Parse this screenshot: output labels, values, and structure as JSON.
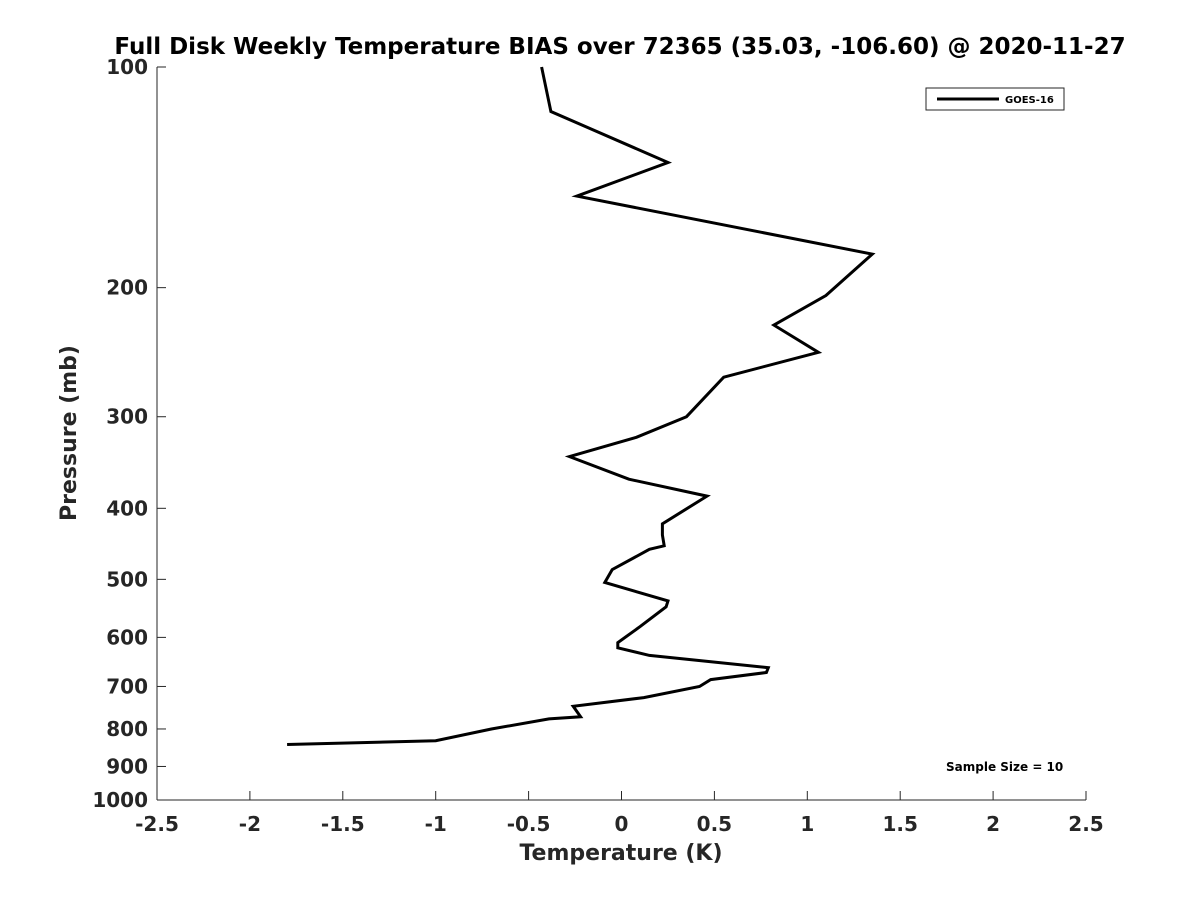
{
  "chart_data": {
    "type": "line",
    "title": "Full Disk Weekly Temperature BIAS over 72365 (35.03, -106.60) @ 2020-11-27",
    "xlabel": "Temperature (K)",
    "ylabel": "Pressure (mb)",
    "xlim": [
      -2.5,
      2.5
    ],
    "ylim": [
      100,
      1000
    ],
    "y_scale": "log",
    "y_reversed": true,
    "grid": false,
    "legend_position": "top-right",
    "x_ticks": [
      -2.5,
      -2,
      -1.5,
      -1,
      -0.5,
      0,
      0.5,
      1,
      1.5,
      2,
      2.5
    ],
    "x_tick_labels": [
      "-2.5",
      "-2",
      "-1.5",
      "-1",
      "-0.5",
      "0",
      "0.5",
      "1",
      "1.5",
      "2",
      "2.5"
    ],
    "y_ticks": [
      100,
      200,
      300,
      400,
      500,
      600,
      700,
      800,
      900,
      1000
    ],
    "y_tick_labels": [
      "100",
      "200",
      "300",
      "400",
      "500",
      "600",
      "700",
      "800",
      "900",
      "1000"
    ],
    "series": [
      {
        "name": "GOES-16",
        "color": "#000000",
        "x": [
          -0.43,
          -0.38,
          0.25,
          -0.24,
          1.35,
          1.1,
          0.82,
          1.06,
          0.55,
          0.35,
          0.08,
          -0.28,
          0.04,
          0.46,
          0.22,
          0.22,
          0.23,
          0.15,
          -0.05,
          -0.09,
          0.25,
          0.24,
          0.1,
          -0.02,
          -0.02,
          0.15,
          0.79,
          0.78,
          0.48,
          0.42,
          0.12,
          -0.26,
          -0.22,
          -0.39,
          -0.7,
          -1.0,
          -1.8
        ],
        "y": [
          100,
          115,
          135,
          150,
          180,
          205,
          225,
          245,
          265,
          300,
          320,
          340,
          365,
          385,
          420,
          435,
          450,
          455,
          485,
          505,
          535,
          545,
          580,
          610,
          620,
          635,
          660,
          670,
          685,
          700,
          725,
          745,
          770,
          775,
          800,
          830,
          840
        ]
      }
    ],
    "annotations": [
      "Sample Size = 10"
    ]
  }
}
